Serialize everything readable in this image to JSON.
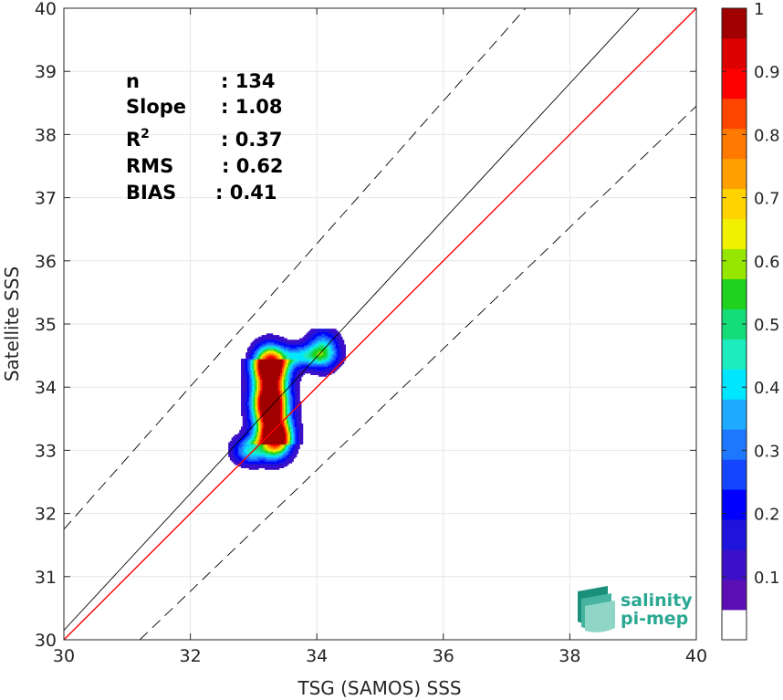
{
  "chart_data": {
    "type": "scatter-density",
    "xlabel": "TSG (SAMOS) SSS",
    "ylabel": "Satellite SSS",
    "xlim": [
      30,
      40
    ],
    "ylim": [
      30,
      40
    ],
    "x_ticks": [
      30,
      32,
      34,
      36,
      38,
      40
    ],
    "y_ticks": [
      30,
      31,
      32,
      33,
      34,
      35,
      36,
      37,
      38,
      39,
      40
    ],
    "grid": true,
    "stats": [
      {
        "label": "n",
        "value": ": 134"
      },
      {
        "label": "Slope",
        "value": ": 1.08"
      },
      {
        "label": "R",
        "sup": "2",
        "value": ": 0.37"
      },
      {
        "label": "RMS",
        "value": ": 0.62"
      },
      {
        "label": "BIAS",
        "value": ": 0.41"
      }
    ],
    "lines": {
      "one_to_one": {
        "color": "#ff0000",
        "x": [
          30,
          40
        ],
        "y": [
          30,
          40
        ]
      },
      "regression": {
        "color": "#000000",
        "x": [
          30,
          39.1
        ],
        "y": [
          30.15,
          40
        ]
      },
      "upper_envelope": {
        "color": "#000000",
        "style": "dashed",
        "x": [
          30,
          37.3
        ],
        "y": [
          31.75,
          40
        ]
      },
      "lower_envelope": {
        "color": "#000000",
        "style": "dashed",
        "x": [
          31.2,
          40
        ],
        "y": [
          30,
          38.45
        ]
      }
    },
    "density_peaks": [
      {
        "x": 33.25,
        "y": 34.35,
        "value": 1.0
      },
      {
        "x": 33.35,
        "y": 33.2,
        "value": 1.0
      },
      {
        "x": 33.25,
        "y": 33.75,
        "value": 0.9
      },
      {
        "x": 34.1,
        "y": 34.6,
        "value": 0.4
      }
    ],
    "colorbar": {
      "ticks": [
        0.1,
        0.2,
        0.3,
        0.4,
        0.5,
        0.6,
        0.7,
        0.8,
        0.9,
        1
      ],
      "tick_labels": [
        "0.1",
        "0.2",
        "0.3",
        "0.4",
        "0.5",
        "0.6",
        "0.7",
        "0.8",
        "0.9",
        "1"
      ],
      "range": [
        0,
        1
      ],
      "colors": [
        "#ffffff",
        "#5a0fb4",
        "#3c0fc8",
        "#1e14dc",
        "#0000ff",
        "#1446ff",
        "#1e78ff",
        "#1eaaff",
        "#00e6ff",
        "#1eebbe",
        "#14dc78",
        "#1ed21e",
        "#96e600",
        "#f0f000",
        "#ffd200",
        "#ffa000",
        "#ff7800",
        "#ff4600",
        "#ff0000",
        "#dc0000",
        "#a00000"
      ]
    }
  },
  "logo": {
    "line1": "salinity",
    "line2": "pi-mep"
  }
}
